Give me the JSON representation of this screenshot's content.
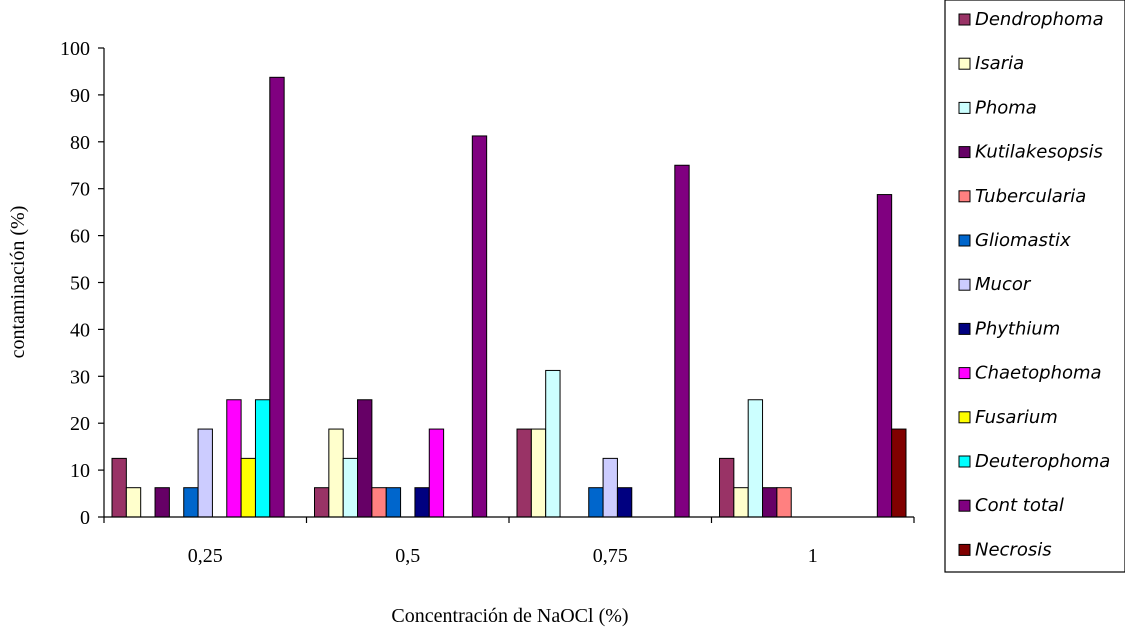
{
  "chart_data": {
    "type": "bar",
    "title": "",
    "xlabel": "Concentración de NaOCl (%)",
    "ylabel": "contaminación (%)",
    "ylim": [
      0,
      100
    ],
    "yticks": [
      "0",
      "10",
      "20",
      "30",
      "40",
      "50",
      "60",
      "70",
      "80",
      "90",
      "100"
    ],
    "categories": [
      "0,25",
      "0,5",
      "0,75",
      "1"
    ],
    "grid": false,
    "legend_position": "right",
    "series": [
      {
        "name": "Dendrophoma",
        "color": "#993366",
        "values": [
          12.5,
          6.25,
          18.75,
          12.5
        ]
      },
      {
        "name": "Isaria",
        "color": "#FFFFCC",
        "values": [
          6.25,
          18.75,
          18.75,
          6.25
        ]
      },
      {
        "name": "Phoma",
        "color": "#CCFFFF",
        "values": [
          0,
          12.5,
          31.25,
          25
        ]
      },
      {
        "name": "Kutilakesopsis",
        "color": "#660066",
        "values": [
          6.25,
          25,
          0,
          6.25
        ]
      },
      {
        "name": "Tubercularia",
        "color": "#FF8080",
        "values": [
          0,
          6.25,
          0,
          6.25
        ]
      },
      {
        "name": "Gliomastix",
        "color": "#0066CC",
        "values": [
          6.25,
          6.25,
          6.25,
          0
        ]
      },
      {
        "name": "Mucor",
        "color": "#CCCCFF",
        "values": [
          18.75,
          0,
          12.5,
          0
        ]
      },
      {
        "name": "Phythium",
        "color": "#000080",
        "values": [
          0,
          6.25,
          6.25,
          0
        ]
      },
      {
        "name": "Chaetophoma",
        "color": "#FF00FF",
        "values": [
          25,
          18.75,
          0,
          0
        ]
      },
      {
        "name": "Fusarium",
        "color": "#FFFF00",
        "values": [
          12.5,
          0,
          0,
          0
        ]
      },
      {
        "name": "Deuterophoma",
        "color": "#00FFFF",
        "values": [
          25,
          0,
          0,
          0
        ]
      },
      {
        "name": "Cont total",
        "color": "#800080",
        "values": [
          93.75,
          81.25,
          75,
          68.75
        ]
      },
      {
        "name": "Necrosis",
        "color": "#800000",
        "values": [
          0,
          0,
          0,
          18.75
        ]
      }
    ]
  }
}
